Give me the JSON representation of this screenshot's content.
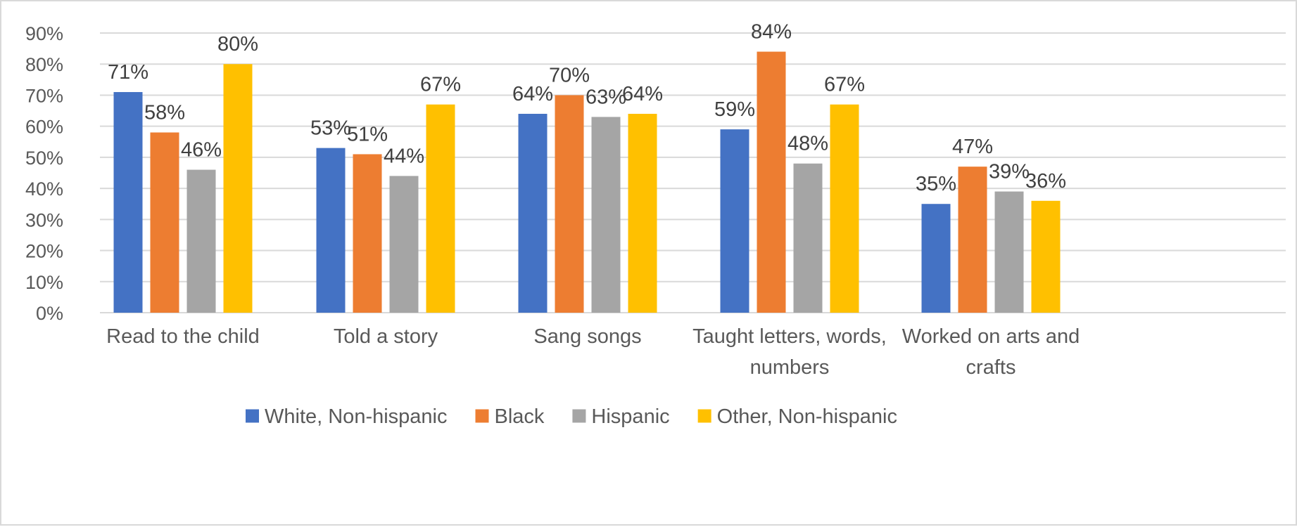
{
  "chart_data": {
    "type": "bar",
    "categories": [
      [
        "Read to the child"
      ],
      [
        "Told a story"
      ],
      [
        "Sang songs"
      ],
      [
        "Taught letters, words,",
        "numbers"
      ],
      [
        "Worked on arts and",
        "crafts"
      ]
    ],
    "series": [
      {
        "name": "White, Non-hispanic",
        "color": "#4472c4",
        "values": [
          71,
          53,
          64,
          59,
          35
        ]
      },
      {
        "name": "Black",
        "color": "#ed7d31",
        "values": [
          58,
          51,
          70,
          84,
          47
        ]
      },
      {
        "name": "Hispanic",
        "color": "#a5a5a5",
        "values": [
          46,
          44,
          63,
          48,
          39
        ]
      },
      {
        "name": "Other, Non-hispanic",
        "color": "#ffc000",
        "values": [
          80,
          67,
          64,
          67,
          36
        ]
      }
    ],
    "value_suffix": "%",
    "ylim": [
      0,
      90
    ],
    "y_ticks": [
      0,
      10,
      20,
      30,
      40,
      50,
      60,
      70,
      80,
      90
    ],
    "y_tick_labels": [
      "0%",
      "10%",
      "20%",
      "30%",
      "40%",
      "50%",
      "60%",
      "70%",
      "80%",
      "90%"
    ],
    "grid": true,
    "grid_color": "#d9d9d9",
    "legend_position": "bottom",
    "title": "",
    "xlabel": "",
    "ylabel": ""
  }
}
